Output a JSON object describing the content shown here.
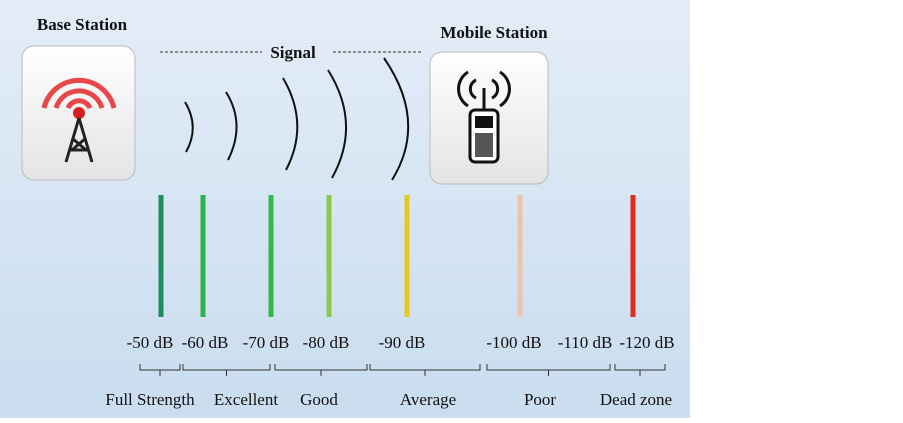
{
  "header": {
    "base_station": "Base Station",
    "signal": "Signal",
    "mobile_station": "Mobile Station"
  },
  "levels": [
    {
      "label": "-50 dB",
      "color": "#1f8c5c"
    },
    {
      "label": "-60 dB",
      "color": "#2fb24c"
    },
    {
      "label": "-70 dB",
      "color": "#33b848"
    },
    {
      "label": "-80 dB",
      "color": "#8cc84c"
    },
    {
      "label": "-90 dB",
      "color": "#e6c81e"
    },
    {
      "label": "-100 dB",
      "color": "#efc3ab"
    },
    {
      "label": "-110 dB",
      "color": null
    },
    {
      "label": "-120 dB",
      "color": "#e02a1c"
    }
  ],
  "zones": [
    "Full Strength",
    "Excellent",
    "Good",
    "Average",
    "Poor",
    "Dead zone"
  ]
}
